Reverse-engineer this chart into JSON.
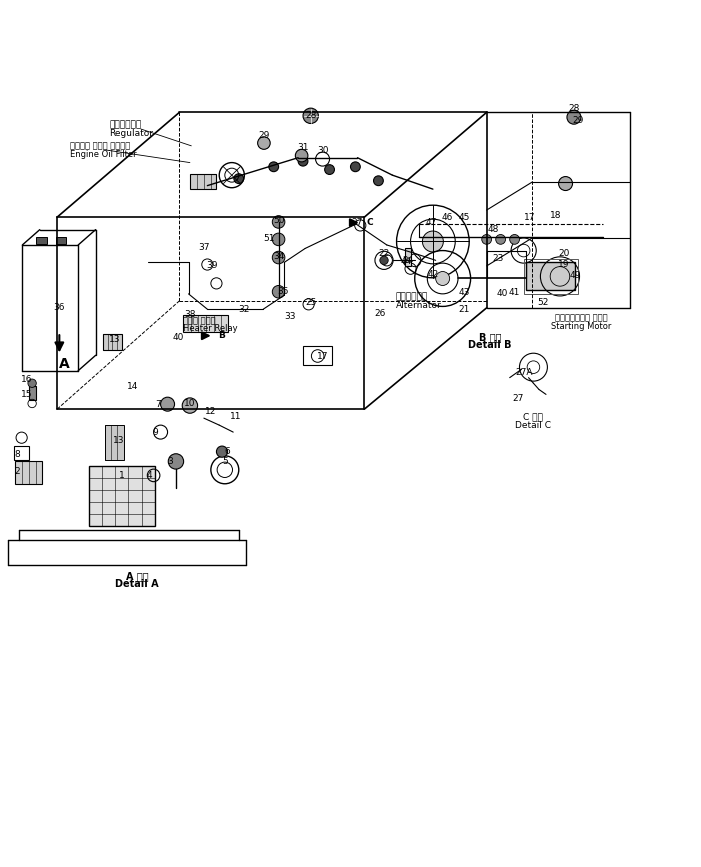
{
  "background_color": "#ffffff",
  "figure_width": 7.01,
  "figure_height": 8.67,
  "dpi": 100,
  "labels": {
    "regulator_jp": "レギュレータ",
    "regulator_en": "Regulator",
    "engine_oil_filter_jp": "エンジン オイル フィルタ",
    "engine_oil_filter_en": "Engine Oil Filter",
    "heater_relay_jp": "ヒータ リレー",
    "heater_relay_en": "Heater Relay",
    "detail_a_jp": "A 詳細",
    "detail_a_en": "Detail A",
    "detail_b_jp": "B 詳細",
    "detail_b_en": "Detail B",
    "detail_c_jp": "C 詳細",
    "detail_c_en": "Detail C",
    "alternator_jp": "オルタネータ",
    "alternator_en": "Alternator",
    "starting_motor_jp": "スターティング モータ",
    "starting_motor_en": "Starting Motor"
  }
}
